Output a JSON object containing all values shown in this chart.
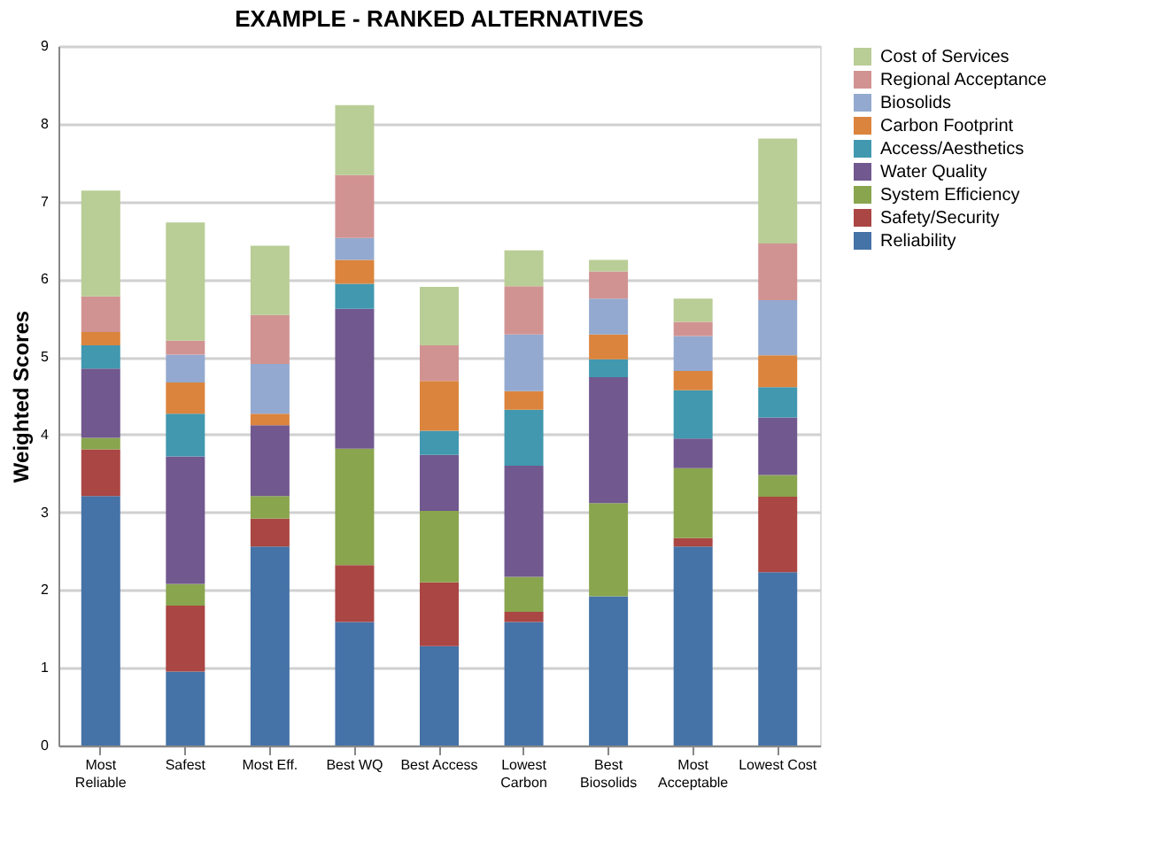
{
  "chart_data": {
    "type": "bar",
    "stacked": true,
    "title": "EXAMPLE - RANKED ALTERNATIVES",
    "ylabel": "Weighted Scores",
    "categories": [
      "Most Reliable",
      "Safest",
      "Most Eff.",
      "Best WQ",
      "Best Access",
      "Lowest Carbon",
      "Best Biosolids",
      "Most Acceptable",
      "Lowest Cost"
    ],
    "series": [
      {
        "name": "Reliability",
        "color": "#4572a7",
        "values": [
          3.21,
          0.95,
          2.56,
          1.59,
          1.28,
          1.59,
          1.92,
          2.56,
          2.23
        ]
      },
      {
        "name": "Safety/Security",
        "color": "#aa4643",
        "values": [
          0.6,
          0.85,
          0.36,
          0.73,
          0.82,
          0.13,
          0,
          0.11,
          0.97
        ]
      },
      {
        "name": "System Efficiency",
        "color": "#89a54e",
        "values": [
          0.15,
          0.28,
          0.29,
          1.5,
          0.92,
          0.45,
          1.2,
          0.9,
          0.28
        ]
      },
      {
        "name": "Water Quality",
        "color": "#71588f",
        "values": [
          0.89,
          1.64,
          0.91,
          1.8,
          0.72,
          1.43,
          1.62,
          0.38,
          0.74
        ]
      },
      {
        "name": "Access/Aesthetics",
        "color": "#4198af",
        "values": [
          0.3,
          0.55,
          0,
          0.32,
          0.31,
          0.72,
          0.23,
          0.62,
          0.39
        ]
      },
      {
        "name": "Carbon Footprint",
        "color": "#db843d",
        "values": [
          0.17,
          0.4,
          0.15,
          0.31,
          0.64,
          0.24,
          0.32,
          0.25,
          0.41
        ]
      },
      {
        "name": "Biosolids",
        "color": "#93a9cf",
        "values": [
          0,
          0.36,
          0.64,
          0.28,
          0,
          0.73,
          0.46,
          0.45,
          0.71
        ]
      },
      {
        "name": "Regional Acceptance",
        "color": "#d19392",
        "values": [
          0.46,
          0.18,
          0.63,
          0.81,
          0.46,
          0.62,
          0.35,
          0.18,
          0.73
        ]
      },
      {
        "name": "Cost of Services",
        "color": "#b9cd96",
        "values": [
          1.36,
          1.52,
          0.89,
          0.9,
          0.75,
          0.46,
          0.15,
          0.3,
          1.35
        ]
      }
    ],
    "ylim": [
      0,
      9
    ],
    "yticks": [
      0,
      1,
      2,
      3,
      4,
      5,
      6,
      7,
      8,
      9
    ],
    "grid": "y",
    "legend": "right"
  }
}
